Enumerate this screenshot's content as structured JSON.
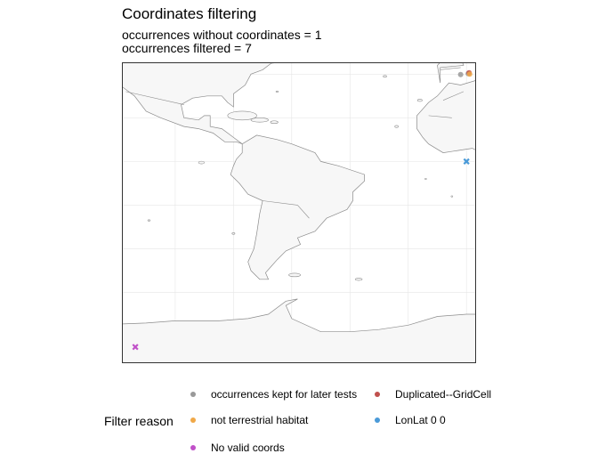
{
  "title": "Coordinates filtering",
  "subtitle_lines": [
    "occurrences without coordinates = 1",
    "occurrences filtered =  7"
  ],
  "legend": {
    "title": "Filter reason",
    "items": [
      {
        "label": "occurrences kept for later tests",
        "color": "#999999"
      },
      {
        "label": "Duplicated--GridCell",
        "color": "#C0504D"
      },
      {
        "label": "not terrestrial habitat",
        "color": "#F0A848"
      },
      {
        "label": "LonLat 0 0",
        "color": "#4A9AD8"
      },
      {
        "label": "No valid coords",
        "color": "#C050C8"
      }
    ]
  },
  "map": {
    "land_color": "#F7F7F7",
    "border_color": "#8C8C8C",
    "grid": true,
    "grid_color": "#E6E6E6",
    "xlim": [
      -118,
      3
    ],
    "ylim": [
      -92,
      45
    ],
    "points": [
      {
        "lon": 0.6,
        "lat": 40.2,
        "reason": "occurrences kept for later tests",
        "marker": "dot"
      },
      {
        "lon": 0.9,
        "lat": 40.6,
        "reason": "Duplicated--GridCell",
        "marker": "dot"
      },
      {
        "lon": 1.1,
        "lat": 40.0,
        "reason": "not terrestrial habitat",
        "marker": "dot"
      },
      {
        "lon": -2.0,
        "lat": 39.8,
        "reason": "occurrences kept for later tests",
        "marker": "dot"
      },
      {
        "lon": 0.0,
        "lat": 0.0,
        "reason": "LonLat 0 0",
        "marker": "x"
      },
      {
        "lon": -113.7,
        "lat": -85.0,
        "reason": "No valid coords",
        "marker": "x"
      }
    ]
  }
}
